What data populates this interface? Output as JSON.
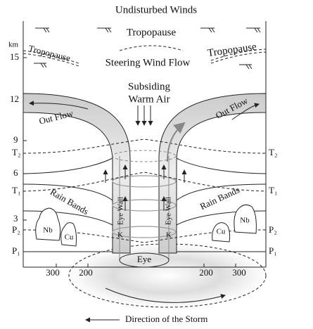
{
  "title": "Undisturbed Winds",
  "tropopause_center": "Tropopause",
  "tropopause_left": "Tropopause",
  "tropopause_right": "Tropopause",
  "steering_wind_flow": "Steering Wind Flow",
  "subsiding_warm_air": [
    "Subsiding",
    "Warm Air"
  ],
  "out_flow": [
    "Out Flow",
    "Out Flow"
  ],
  "rain_bands": [
    "Rain Bands",
    "Rain Bands"
  ],
  "eye_wall": [
    "Eye Wall",
    "Eye Wall"
  ],
  "clouds": [
    "Nb",
    "Cu",
    "Cu",
    "Nb"
  ],
  "k_labels": [
    "K",
    "K"
  ],
  "eye": "Eye",
  "left_axis": [
    "km",
    "15",
    "12",
    "9",
    "T₂",
    "6",
    "T₁",
    "3",
    "P₂",
    "P₁"
  ],
  "right_axis": [
    "T₂",
    "T₁",
    "P₂",
    "P₁"
  ],
  "bottom_axis": [
    "300",
    "200",
    "200",
    "300"
  ],
  "footer": "Direction of the Storm"
}
